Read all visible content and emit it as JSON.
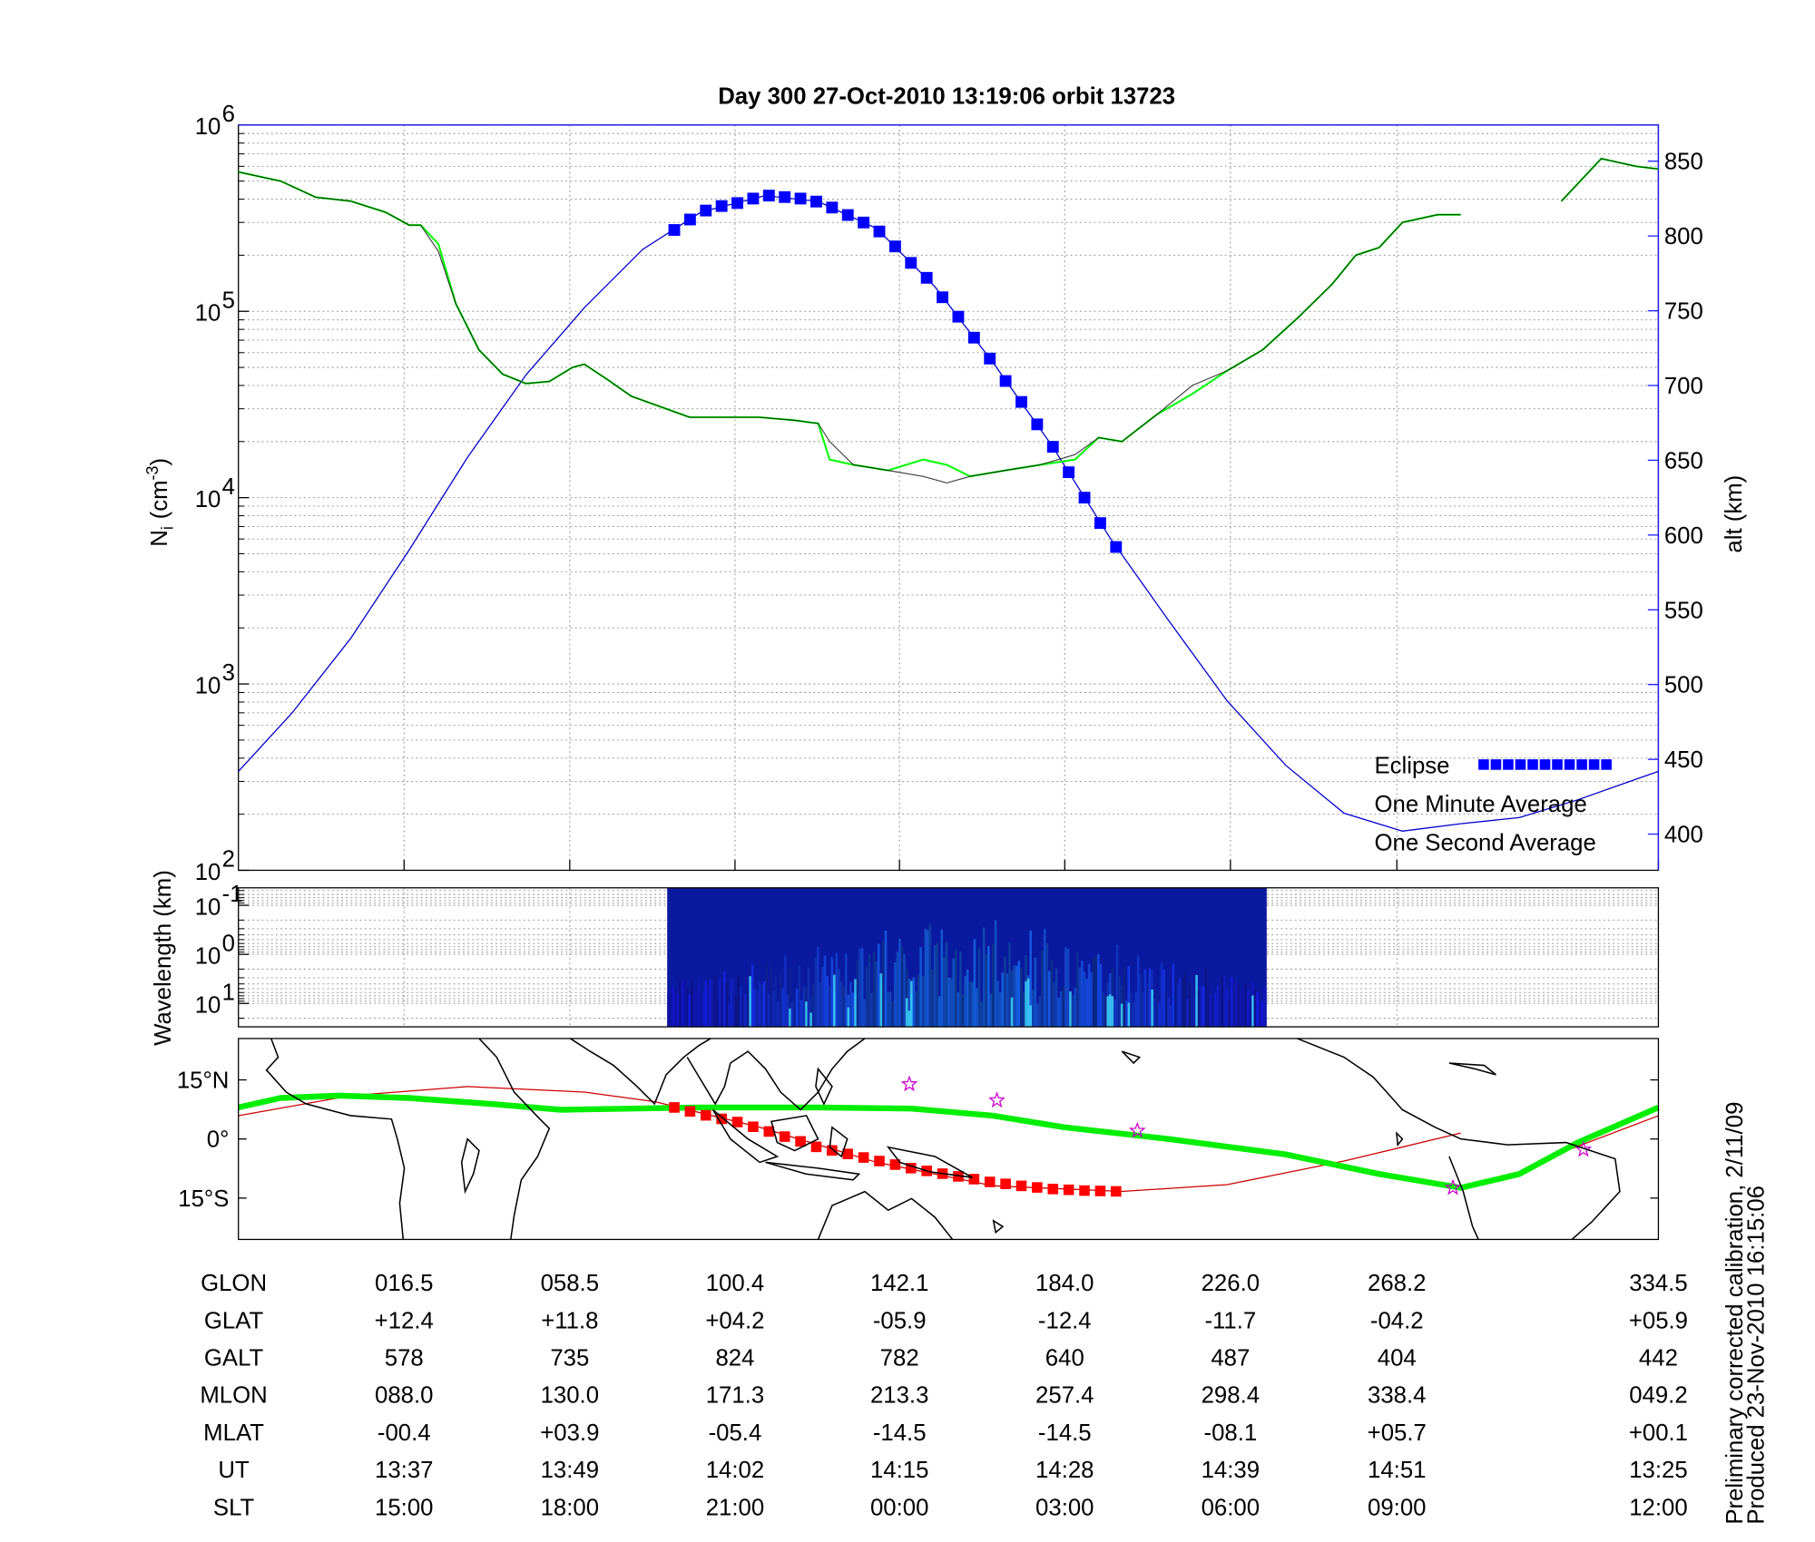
{
  "chart_data": [
    {
      "type": "line",
      "title": "Day 300  27-Oct-2010 13:19:06   orbit 13723",
      "ylabel": {
        "base": "N",
        "sub": "i",
        "unit": "(cm",
        "exp": "-3",
        "close": ")"
      },
      "y2label": "alt (km)",
      "xlim": [
        -25.5,
        334.5
      ],
      "xticks": [
        {
          "value": 16.5,
          "label": "016.5"
        },
        {
          "value": 58.5,
          "label": "058.5"
        },
        {
          "value": 100.4,
          "label": "100.4"
        },
        {
          "value": 142.1,
          "label": "142.1"
        },
        {
          "value": 184.0,
          "label": "184.0"
        },
        {
          "value": 226.0,
          "label": "226.0"
        },
        {
          "value": 268.2,
          "label": "268.2"
        },
        {
          "value": 334.5,
          "label": "334.5"
        }
      ],
      "log_y": true,
      "ylim": [
        100,
        1000000
      ],
      "yticks": [
        {
          "value": 100,
          "label": "10",
          "exponent": "2"
        },
        {
          "value": 1000,
          "label": "10",
          "exponent": "3"
        },
        {
          "value": 10000,
          "label": "10",
          "exponent": "4"
        },
        {
          "value": 100000,
          "label": "10",
          "exponent": "5"
        },
        {
          "value": 1000000,
          "label": "10",
          "exponent": "6"
        }
      ],
      "y2lim": [
        375.8,
        874.2
      ],
      "y2ticks": [
        400,
        450,
        500,
        550,
        600,
        650,
        700,
        750,
        800,
        850
      ],
      "y2color": "#1a1aff",
      "grid": true,
      "legend": "lower right",
      "series": [
        {
          "name": "Eclipse",
          "color": "#0000ff",
          "axis": "y2",
          "marker": "square",
          "x": [
            85,
            89,
            93,
            97,
            101,
            105,
            109,
            113,
            117,
            121,
            125,
            129,
            133,
            137,
            141,
            145,
            149,
            153,
            157,
            161,
            165,
            169,
            173,
            177,
            181,
            185,
            189,
            193,
            197
          ],
          "values": [
            804,
            811,
            817,
            820,
            822,
            825,
            827,
            826,
            825,
            823,
            819,
            814,
            809,
            803,
            793,
            782,
            772,
            759,
            746,
            732,
            718,
            703,
            689,
            674,
            659,
            642,
            625,
            608,
            592
          ]
        },
        {
          "name": "One Minute Average",
          "color": "#000000",
          "x": [
            -25.5,
            -14.8,
            -5.9,
            3.0,
            11.8,
            17.8,
            20.7,
            25.2,
            29.6,
            35.5,
            41.5,
            47.4,
            53.3,
            59.2,
            62.2,
            68.1,
            74.1,
            82.9,
            88.9,
            97.8,
            106.6,
            115.5,
            121.5,
            124.4,
            130.4,
            139.2,
            148.1,
            154.1,
            160.0,
            168.9,
            177.8,
            186.6,
            192.6,
            198.5,
            207.4,
            216.3,
            225.2,
            234.1,
            243.0,
            251.8,
            257.8,
            263.7,
            269.6,
            278.5,
            284.4,
            297.0,
            309.9,
            320.0,
            328.9,
            334.5
          ],
          "values": [
            560000,
            500000,
            410000,
            390000,
            340000,
            290000,
            290000,
            210000,
            110000,
            62000,
            46000,
            41000,
            42000,
            50000,
            52000,
            43000,
            35000,
            30000,
            27000,
            27000,
            27000,
            26000,
            25000,
            20000,
            15000,
            14000,
            13000,
            12000,
            13000,
            14000,
            15000,
            17000,
            21000,
            20000,
            28000,
            40000,
            48000,
            62000,
            92000,
            140000,
            200000,
            220000,
            300000,
            330000,
            330000,
            null,
            390000,
            660000,
            600000,
            580000
          ]
        },
        {
          "name": "One Second Average",
          "color": "#00ff00",
          "x": [
            -25.5,
            -14.8,
            -5.9,
            3.0,
            11.8,
            17.8,
            20.7,
            25.2,
            29.6,
            35.5,
            41.5,
            47.4,
            53.3,
            59.2,
            62.2,
            68.1,
            74.1,
            82.9,
            88.9,
            97.8,
            106.6,
            115.5,
            121.5,
            124.4,
            130.4,
            139.2,
            148.1,
            154.1,
            160.0,
            168.9,
            177.8,
            186.6,
            192.6,
            198.5,
            207.4,
            216.3,
            225.2,
            234.1,
            243.0,
            251.8,
            257.8,
            263.7,
            269.6,
            278.5,
            284.4,
            297.0,
            309.9,
            320.0,
            328.9,
            334.5
          ],
          "values": [
            560000,
            500000,
            410000,
            390000,
            340000,
            290000,
            290000,
            230000,
            110000,
            62000,
            46000,
            41000,
            42000,
            50000,
            52000,
            43000,
            35000,
            30000,
            27000,
            27000,
            27000,
            26000,
            25000,
            16000,
            15000,
            14000,
            16000,
            15000,
            13000,
            14000,
            15000,
            16000,
            21000,
            20000,
            28000,
            36000,
            48000,
            62000,
            92000,
            140000,
            200000,
            220000,
            300000,
            330000,
            330000,
            null,
            390000,
            660000,
            600000,
            580000
          ]
        },
        {
          "color": "#0000cc",
          "axis": "y2",
          "x": [
            -25.5,
            -11.9,
            3.0,
            17.8,
            32.6,
            47.4,
            62.2,
            77.0,
            91.8,
            108.1,
            121.5,
            136.3,
            151.1,
            165.9,
            180.7,
            195.5,
            210.3,
            225.2,
            240.0,
            254.8,
            269.6,
            284.4,
            299.2,
            314.1,
            334.5
          ],
          "values": [
            442,
            481,
            531,
            590,
            652,
            707,
            752,
            791,
            816,
            827,
            823,
            805,
            766,
            715,
            660,
            598,
            543,
            489,
            446,
            414,
            402,
            407,
            411,
            423,
            442
          ]
        }
      ]
    },
    {
      "type": "spectrogram",
      "ylabel": "Wavelength (km)",
      "xlim": [
        -25.5,
        334.5
      ],
      "log_y": true,
      "ylim": [
        30,
        0.044
      ],
      "yticks": [
        {
          "value": 0.1,
          "label": "10",
          "exponent": "-1"
        },
        {
          "value": 1,
          "label": "10",
          "exponent": "0"
        },
        {
          "value": 10,
          "label": "10",
          "exponent": "1"
        }
      ],
      "x_span": [
        83.2,
        235.2
      ],
      "grid": true
    },
    {
      "type": "map",
      "xlim": [
        -25.5,
        334.5
      ],
      "ylim": [
        -25.5,
        25.5
      ],
      "yticks": [
        {
          "value": -15,
          "label": "15°S"
        },
        {
          "value": 0,
          "label": "0°"
        },
        {
          "value": 15,
          "label": "15°N"
        }
      ],
      "series": [
        {
          "color": "#cc0000",
          "x": [
            -25.5,
            3.0,
            32.6,
            62.2,
            80.0,
            106.6,
            136.2,
            165.9,
            198.5,
            225.2,
            254.8,
            284.4,
            297.0,
            311.1,
            334.5
          ],
          "values": [
            5.9,
            11.0,
            13.3,
            11.9,
            9.5,
            3.0,
            -5.9,
            -11.9,
            -13.3,
            -11.6,
            -5.6,
            1.5,
            null,
            -3.0,
            5.9
          ]
        },
        {
          "color": "#00ee00",
          "x": [
            -25.5,
            -14.8,
            0.0,
            17.8,
            38.5,
            56.3,
            74.1,
            91.8,
            121.5,
            145.2,
            165.9,
            183.7,
            210.3,
            240.0,
            263.7,
            284.4,
            299.2,
            314.1,
            334.5
          ],
          "values": [
            8.0,
            10.4,
            11.0,
            10.4,
            8.9,
            7.4,
            7.7,
            8.0,
            8.0,
            7.7,
            5.9,
            3.0,
            0,
            -3.9,
            -8.9,
            -12.4,
            -8.9,
            -0.9,
            8.0
          ]
        },
        {
          "color": "#ff0000",
          "marker": "square",
          "x": [
            85,
            89,
            93,
            97,
            101,
            105,
            109,
            113,
            117,
            121,
            125,
            129,
            133,
            137,
            141,
            145,
            149,
            153,
            157,
            161,
            165,
            169,
            173,
            177,
            181,
            185,
            189,
            193,
            197
          ],
          "values": [
            8.0,
            7.0,
            6.0,
            5.1,
            4.3,
            3.1,
            1.9,
            0.6,
            -0.6,
            -2.0,
            -2.9,
            -3.8,
            -4.7,
            -5.6,
            -6.5,
            -7.4,
            -8.1,
            -8.8,
            -9.5,
            -10.2,
            -10.9,
            -11.4,
            -11.9,
            -12.3,
            -12.7,
            -12.9,
            -13.1,
            -13.2,
            -13.3
          ]
        },
        {
          "color": "#cc00cc",
          "marker": "star",
          "x": [
            144.6,
            166.8,
            202.4,
            282.4,
            315.5
          ],
          "values": [
            13.9,
            9.8,
            2.1,
            -12.4,
            -2.7
          ]
        }
      ]
    }
  ],
  "table": {
    "rows": [
      {
        "name": "GLON"
      },
      {
        "name": "GLAT",
        "cells": [
          "+12.4",
          "+11.8",
          "+04.2",
          "-05.9",
          "-12.4",
          "-11.7",
          "-04.2",
          "+05.9"
        ]
      },
      {
        "name": "GALT",
        "cells": [
          "578",
          "735",
          "824",
          "782",
          "640",
          "487",
          "404",
          "442"
        ]
      },
      {
        "name": "MLON",
        "cells": [
          "088.0",
          "130.0",
          "171.3",
          "213.3",
          "257.4",
          "298.4",
          "338.4",
          "049.2"
        ]
      },
      {
        "name": "MLAT",
        "cells": [
          "-00.4",
          "+03.9",
          "-05.4",
          "-14.5",
          "-14.5",
          "-08.1",
          "+05.7",
          "+00.1"
        ]
      },
      {
        "name": "UT",
        "cells": [
          "13:37",
          "13:49",
          "14:02",
          "14:15",
          "14:28",
          "14:39",
          "14:51",
          "13:25"
        ]
      },
      {
        "name": "SLT",
        "cells": [
          "15:00",
          "18:00",
          "21:00",
          "00:00",
          "03:00",
          "06:00",
          "09:00",
          "12:00"
        ]
      }
    ]
  },
  "notes": [
    "Preliminary corrected calibration, 2/11/09",
    "Produced 23-Nov-2010 16:15:06"
  ]
}
